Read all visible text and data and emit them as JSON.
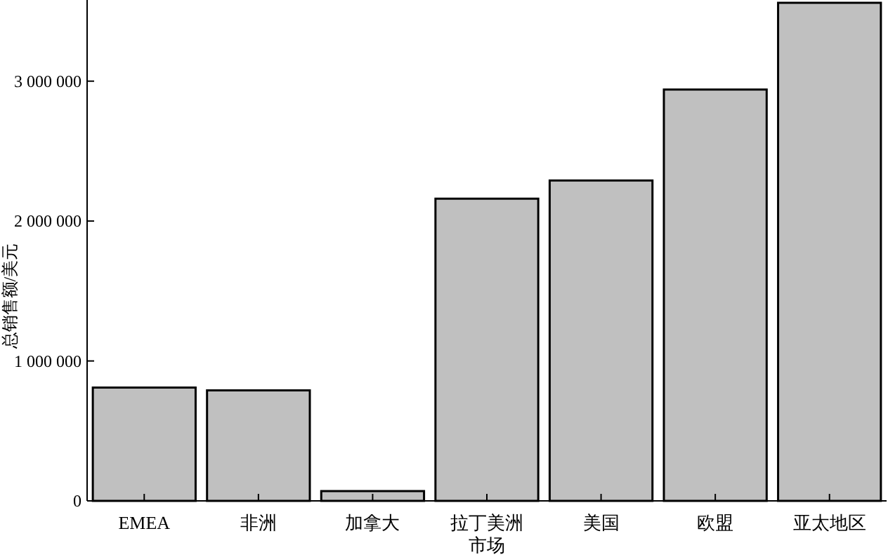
{
  "chart_data": {
    "type": "bar",
    "xlabel": "市场",
    "ylabel": "总销售额/美元",
    "categories": [
      "EMEA",
      "非洲",
      "加拿大",
      "拉丁美洲",
      "美国",
      "欧盟",
      "亚太地区"
    ],
    "values": [
      810000,
      790000,
      70000,
      2160000,
      2290000,
      2940000,
      3560000
    ],
    "color": "#c0c0c0",
    "ylim": [
      0,
      3570000
    ],
    "yticks": [
      {
        "value": 0,
        "label": "0"
      },
      {
        "value": 1000000,
        "label": "1 000 000"
      },
      {
        "value": 2000000,
        "label": "2 000 000"
      },
      {
        "value": 3000000,
        "label": "3 000 000"
      }
    ],
    "grid": false
  }
}
